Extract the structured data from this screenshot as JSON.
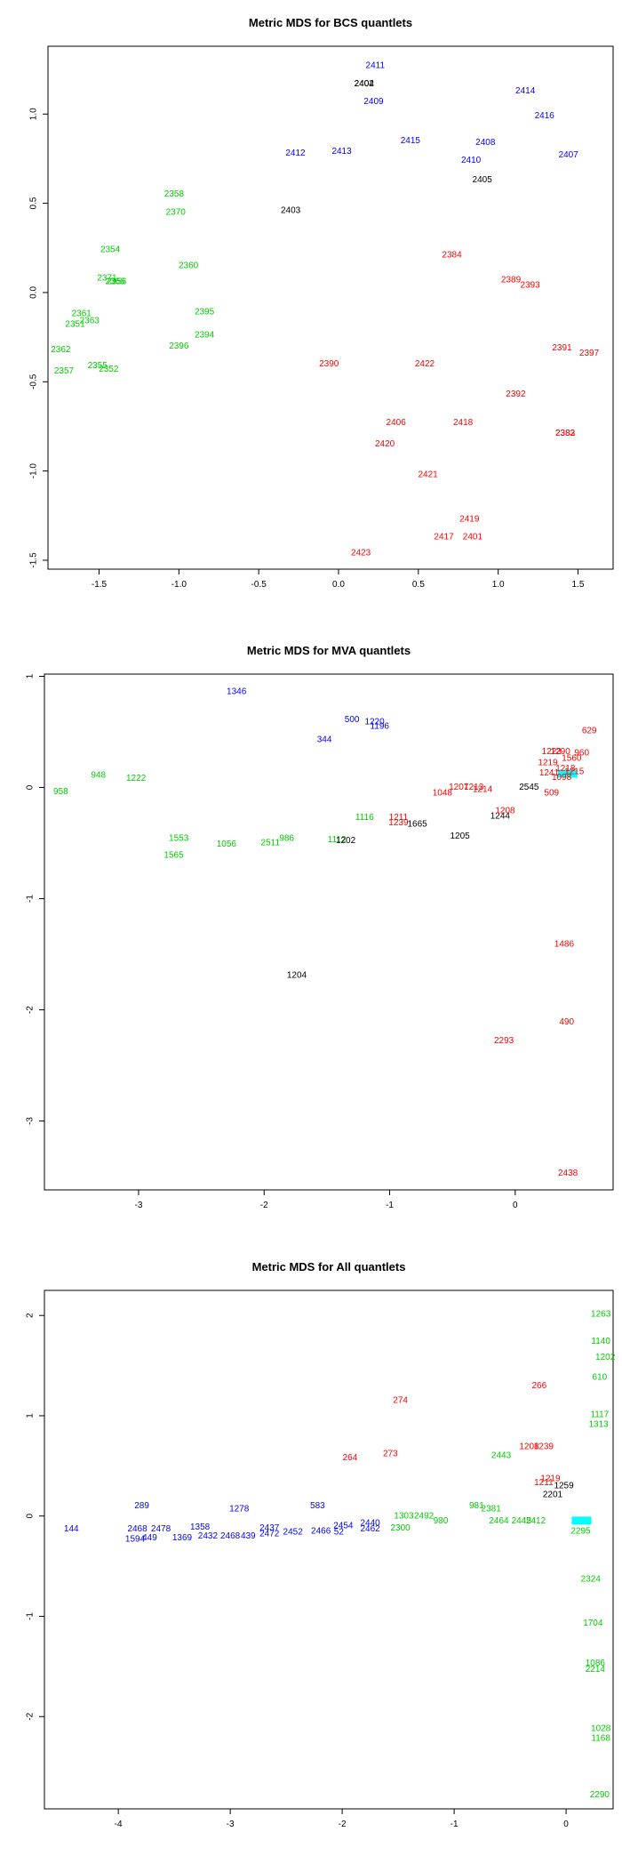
{
  "colors": {
    "black": "#000000",
    "blue": "#0000ff",
    "red": "#ff0000",
    "green": "#00cc00",
    "cyan": "#00ffff"
  },
  "chart_data": [
    {
      "type": "scatter",
      "title": "Metric MDS for BCS quantlets",
      "xlabel": "",
      "ylabel": "",
      "xlim": [
        -1.82,
        1.72
      ],
      "ylim": [
        -1.55,
        1.38
      ],
      "xticks": [
        "-1.5",
        "-1.0",
        "-0.5",
        "0.0",
        "0.5",
        "1.0",
        "1.5"
      ],
      "xtick_values": [
        -1.5,
        -1.0,
        -0.5,
        0.0,
        0.5,
        1.0,
        1.5
      ],
      "yticks": [
        "-1.5",
        "-1.0",
        "-0.5",
        "0.0",
        "0.5",
        "1.0"
      ],
      "ytick_values": [
        -1.5,
        -1.0,
        -0.5,
        0.0,
        0.5,
        1.0
      ],
      "points": [
        {
          "label": "2411",
          "x": 0.23,
          "y": 1.27,
          "color": "blue"
        },
        {
          "label": "2402",
          "x": 0.16,
          "y": 1.17,
          "color": "black"
        },
        {
          "label": "2404",
          "x": 0.16,
          "y": 1.17,
          "color": "black"
        },
        {
          "label": "2409",
          "x": 0.22,
          "y": 1.07,
          "color": "blue"
        },
        {
          "label": "2414",
          "x": 1.17,
          "y": 1.13,
          "color": "blue"
        },
        {
          "label": "2416",
          "x": 1.29,
          "y": 0.99,
          "color": "blue"
        },
        {
          "label": "2412",
          "x": -0.27,
          "y": 0.78,
          "color": "blue"
        },
        {
          "label": "2413",
          "x": 0.02,
          "y": 0.79,
          "color": "blue"
        },
        {
          "label": "2415",
          "x": 0.45,
          "y": 0.85,
          "color": "blue"
        },
        {
          "label": "2408",
          "x": 0.92,
          "y": 0.84,
          "color": "blue"
        },
        {
          "label": "2410",
          "x": 0.83,
          "y": 0.74,
          "color": "blue"
        },
        {
          "label": "2407",
          "x": 1.44,
          "y": 0.77,
          "color": "blue"
        },
        {
          "label": "2405",
          "x": 0.9,
          "y": 0.63,
          "color": "black"
        },
        {
          "label": "2403",
          "x": -0.3,
          "y": 0.46,
          "color": "black"
        },
        {
          "label": "2358",
          "x": -1.03,
          "y": 0.55,
          "color": "green"
        },
        {
          "label": "2370",
          "x": -1.02,
          "y": 0.45,
          "color": "green"
        },
        {
          "label": "2354",
          "x": -1.43,
          "y": 0.24,
          "color": "green"
        },
        {
          "label": "2360",
          "x": -0.94,
          "y": 0.15,
          "color": "green"
        },
        {
          "label": "2371",
          "x": -1.45,
          "y": 0.08,
          "color": "green"
        },
        {
          "label": "2366",
          "x": -1.4,
          "y": 0.06,
          "color": "green"
        },
        {
          "label": "2356",
          "x": -1.39,
          "y": 0.06,
          "color": "green"
        },
        {
          "label": "2361",
          "x": -1.61,
          "y": -0.12,
          "color": "green"
        },
        {
          "label": "2363",
          "x": -1.56,
          "y": -0.16,
          "color": "green"
        },
        {
          "label": "2351",
          "x": -1.65,
          "y": -0.18,
          "color": "green"
        },
        {
          "label": "2395",
          "x": -0.84,
          "y": -0.11,
          "color": "green"
        },
        {
          "label": "2394",
          "x": -0.84,
          "y": -0.24,
          "color": "green"
        },
        {
          "label": "2396",
          "x": -1.0,
          "y": -0.3,
          "color": "green"
        },
        {
          "label": "2362",
          "x": -1.74,
          "y": -0.32,
          "color": "green"
        },
        {
          "label": "2355",
          "x": -1.51,
          "y": -0.41,
          "color": "green"
        },
        {
          "label": "2352",
          "x": -1.44,
          "y": -0.43,
          "color": "green"
        },
        {
          "label": "2357",
          "x": -1.72,
          "y": -0.44,
          "color": "green"
        },
        {
          "label": "2384",
          "x": 0.71,
          "y": 0.21,
          "color": "red"
        },
        {
          "label": "2389",
          "x": 1.08,
          "y": 0.07,
          "color": "red"
        },
        {
          "label": "2393",
          "x": 1.2,
          "y": 0.04,
          "color": "red"
        },
        {
          "label": "2391",
          "x": 1.4,
          "y": -0.31,
          "color": "red"
        },
        {
          "label": "2397",
          "x": 1.57,
          "y": -0.34,
          "color": "red"
        },
        {
          "label": "2390",
          "x": -0.06,
          "y": -0.4,
          "color": "red"
        },
        {
          "label": "2422",
          "x": 0.54,
          "y": -0.4,
          "color": "red"
        },
        {
          "label": "2392",
          "x": 1.11,
          "y": -0.57,
          "color": "red"
        },
        {
          "label": "2406",
          "x": 0.36,
          "y": -0.73,
          "color": "red"
        },
        {
          "label": "2418",
          "x": 0.78,
          "y": -0.73,
          "color": "red"
        },
        {
          "label": "2383",
          "x": 1.42,
          "y": -0.79,
          "color": "red"
        },
        {
          "label": "2382",
          "x": 1.42,
          "y": -0.79,
          "color": "red"
        },
        {
          "label": "2420",
          "x": 0.29,
          "y": -0.85,
          "color": "red"
        },
        {
          "label": "2421",
          "x": 0.56,
          "y": -1.02,
          "color": "red"
        },
        {
          "label": "2419",
          "x": 0.82,
          "y": -1.27,
          "color": "red"
        },
        {
          "label": "2417",
          "x": 0.66,
          "y": -1.37,
          "color": "red"
        },
        {
          "label": "2401",
          "x": 0.84,
          "y": -1.37,
          "color": "red"
        },
        {
          "label": "2423",
          "x": 0.14,
          "y": -1.46,
          "color": "red"
        }
      ]
    },
    {
      "type": "scatter",
      "title": "Metric MDS for MVA quantlets",
      "xlabel": "",
      "ylabel": "",
      "xlim": [
        -3.75,
        0.78
      ],
      "ylim": [
        -3.62,
        1.02
      ],
      "xticks": [
        "-3",
        "-2",
        "-1",
        "0"
      ],
      "xtick_values": [
        -3,
        -2,
        -1,
        0
      ],
      "yticks": [
        "-3",
        "-2",
        "-1",
        "0",
        "1"
      ],
      "ytick_values": [
        -3,
        -2,
        -1,
        0,
        1
      ],
      "points": [
        {
          "label": "1346",
          "x": -2.22,
          "y": 0.86,
          "color": "blue"
        },
        {
          "label": "500",
          "x": -1.3,
          "y": 0.61,
          "color": "blue"
        },
        {
          "label": "1220",
          "x": -1.12,
          "y": 0.59,
          "color": "blue"
        },
        {
          "label": "1196",
          "x": -1.08,
          "y": 0.55,
          "color": "blue"
        },
        {
          "label": "344",
          "x": -1.52,
          "y": 0.43,
          "color": "blue"
        },
        {
          "label": "948",
          "x": -3.32,
          "y": 0.11,
          "color": "green"
        },
        {
          "label": "1222",
          "x": -3.02,
          "y": 0.08,
          "color": "green"
        },
        {
          "label": "958",
          "x": -3.62,
          "y": -0.04,
          "color": "green"
        },
        {
          "label": "1116",
          "x": -1.2,
          "y": -0.27,
          "color": "green"
        },
        {
          "label": "1553",
          "x": -2.68,
          "y": -0.46,
          "color": "green"
        },
        {
          "label": "1056",
          "x": -2.3,
          "y": -0.51,
          "color": "green"
        },
        {
          "label": "2511",
          "x": -1.95,
          "y": -0.5,
          "color": "green"
        },
        {
          "label": "986",
          "x": -1.82,
          "y": -0.46,
          "color": "green"
        },
        {
          "label": "1112",
          "x": -1.42,
          "y": -0.47,
          "color": "green"
        },
        {
          "label": "1565",
          "x": -2.72,
          "y": -0.61,
          "color": "green"
        },
        {
          "label": "1202",
          "x": -1.35,
          "y": -0.48,
          "color": "black"
        },
        {
          "label": "1665",
          "x": -0.78,
          "y": -0.33,
          "color": "black"
        },
        {
          "label": "1205",
          "x": -0.44,
          "y": -0.44,
          "color": "black"
        },
        {
          "label": "1204",
          "x": -1.74,
          "y": -1.69,
          "color": "black"
        },
        {
          "label": "2545",
          "x": 0.11,
          "y": 0.0,
          "color": "black"
        },
        {
          "label": "1244",
          "x": -0.12,
          "y": -0.26,
          "color": "black"
        },
        {
          "label": "1226",
          "x": 0.41,
          "y": 0.12,
          "color": "cyan"
        },
        {
          "label": "629",
          "x": 0.59,
          "y": 0.51,
          "color": "red"
        },
        {
          "label": "1223",
          "x": 0.29,
          "y": 0.32,
          "color": "red"
        },
        {
          "label": "1290",
          "x": 0.36,
          "y": 0.32,
          "color": "red"
        },
        {
          "label": "1219",
          "x": 0.26,
          "y": 0.22,
          "color": "red"
        },
        {
          "label": "1560",
          "x": 0.45,
          "y": 0.26,
          "color": "red"
        },
        {
          "label": "960",
          "x": 0.53,
          "y": 0.31,
          "color": "red"
        },
        {
          "label": "1241",
          "x": 0.27,
          "y": 0.13,
          "color": "red"
        },
        {
          "label": "1218",
          "x": 0.4,
          "y": 0.17,
          "color": "red"
        },
        {
          "label": "1215",
          "x": 0.47,
          "y": 0.14,
          "color": "red"
        },
        {
          "label": "1098",
          "x": 0.37,
          "y": 0.09,
          "color": "red"
        },
        {
          "label": "509",
          "x": 0.29,
          "y": -0.05,
          "color": "red"
        },
        {
          "label": "1048",
          "x": -0.58,
          "y": -0.05,
          "color": "red"
        },
        {
          "label": "1207",
          "x": -0.45,
          "y": 0.0,
          "color": "red"
        },
        {
          "label": "1214",
          "x": -0.26,
          "y": -0.02,
          "color": "red"
        },
        {
          "label": "1213",
          "x": -0.33,
          "y": 0.0,
          "color": "red"
        },
        {
          "label": "1208",
          "x": -0.08,
          "y": -0.21,
          "color": "red"
        },
        {
          "label": "1211",
          "x": -0.93,
          "y": -0.27,
          "color": "red"
        },
        {
          "label": "1239",
          "x": -0.93,
          "y": -0.32,
          "color": "red"
        },
        {
          "label": "1486",
          "x": 0.39,
          "y": -1.41,
          "color": "red"
        },
        {
          "label": "490",
          "x": 0.41,
          "y": -2.11,
          "color": "red"
        },
        {
          "label": "2293",
          "x": -0.09,
          "y": -2.28,
          "color": "red"
        },
        {
          "label": "2438",
          "x": 0.42,
          "y": -3.47,
          "color": "red"
        }
      ]
    },
    {
      "type": "scatter",
      "title": "Metric MDS for All quantlets",
      "xlabel": "",
      "ylabel": "",
      "xlim": [
        -4.66,
        0.42
      ],
      "ylim": [
        -2.92,
        2.25
      ],
      "xticks": [
        "-4",
        "-3",
        "-2",
        "-1",
        "0"
      ],
      "xtick_values": [
        -4,
        -3,
        -2,
        -1,
        0
      ],
      "yticks": [
        "-2",
        "-1",
        "0",
        "1",
        "2"
      ],
      "ytick_values": [
        -2,
        -1,
        0,
        1,
        2
      ],
      "points": [
        {
          "label": "289",
          "x": -3.79,
          "y": 0.1,
          "color": "blue"
        },
        {
          "label": "144",
          "x": -4.42,
          "y": -0.13,
          "color": "blue"
        },
        {
          "label": "2468",
          "x": -3.83,
          "y": -0.13,
          "color": "blue"
        },
        {
          "label": "2478",
          "x": -3.62,
          "y": -0.13,
          "color": "blue"
        },
        {
          "label": "1594",
          "x": -3.85,
          "y": -0.23,
          "color": "blue"
        },
        {
          "label": "449",
          "x": -3.72,
          "y": -0.22,
          "color": "blue"
        },
        {
          "label": "1358",
          "x": -3.27,
          "y": -0.11,
          "color": "blue"
        },
        {
          "label": "1369",
          "x": -3.43,
          "y": -0.22,
          "color": "blue"
        },
        {
          "label": "2432",
          "x": -3.2,
          "y": -0.2,
          "color": "blue"
        },
        {
          "label": "2468",
          "x": -3.0,
          "y": -0.2,
          "color": "blue"
        },
        {
          "label": "439",
          "x": -2.84,
          "y": -0.2,
          "color": "blue"
        },
        {
          "label": "1278",
          "x": -2.92,
          "y": 0.07,
          "color": "blue"
        },
        {
          "label": "2437",
          "x": -2.65,
          "y": -0.12,
          "color": "blue"
        },
        {
          "label": "2472",
          "x": -2.65,
          "y": -0.18,
          "color": "blue"
        },
        {
          "label": "2452",
          "x": -2.44,
          "y": -0.16,
          "color": "blue"
        },
        {
          "label": "2466",
          "x": -2.19,
          "y": -0.15,
          "color": "blue"
        },
        {
          "label": "52",
          "x": -2.03,
          "y": -0.16,
          "color": "blue"
        },
        {
          "label": "2454",
          "x": -1.99,
          "y": -0.1,
          "color": "blue"
        },
        {
          "label": "583",
          "x": -2.22,
          "y": 0.1,
          "color": "blue"
        },
        {
          "label": "2440",
          "x": -1.75,
          "y": -0.07,
          "color": "blue"
        },
        {
          "label": "2462",
          "x": -1.75,
          "y": -0.13,
          "color": "blue"
        },
        {
          "label": "274",
          "x": -1.48,
          "y": 1.15,
          "color": "red"
        },
        {
          "label": "264",
          "x": -1.93,
          "y": 0.58,
          "color": "red"
        },
        {
          "label": "273",
          "x": -1.57,
          "y": 0.62,
          "color": "red"
        },
        {
          "label": "266",
          "x": -0.24,
          "y": 1.3,
          "color": "red"
        },
        {
          "label": "1208",
          "x": -0.33,
          "y": 0.69,
          "color": "red"
        },
        {
          "label": "1239",
          "x": -0.2,
          "y": 0.69,
          "color": "red"
        },
        {
          "label": "1211",
          "x": -0.2,
          "y": 0.33,
          "color": "red"
        },
        {
          "label": "1219",
          "x": -0.14,
          "y": 0.37,
          "color": "red"
        },
        {
          "label": "2443",
          "x": -0.58,
          "y": 0.6,
          "color": "green"
        },
        {
          "label": "2300",
          "x": -1.48,
          "y": -0.12,
          "color": "green"
        },
        {
          "label": "1303",
          "x": -1.45,
          "y": 0.0,
          "color": "green"
        },
        {
          "label": "2492",
          "x": -1.27,
          "y": 0.0,
          "color": "green"
        },
        {
          "label": "980",
          "x": -1.12,
          "y": -0.05,
          "color": "green"
        },
        {
          "label": "981",
          "x": -0.8,
          "y": 0.1,
          "color": "green"
        },
        {
          "label": "2381",
          "x": -0.67,
          "y": 0.07,
          "color": "green"
        },
        {
          "label": "2464",
          "x": -0.6,
          "y": -0.05,
          "color": "green"
        },
        {
          "label": "2445",
          "x": -0.4,
          "y": -0.05,
          "color": "green"
        },
        {
          "label": "2412",
          "x": -0.27,
          "y": -0.05,
          "color": "green"
        },
        {
          "label": "1117",
          "x": 0.3,
          "y": 1.01,
          "color": "green"
        },
        {
          "label": "1263",
          "x": 0.31,
          "y": 2.01,
          "color": "green"
        },
        {
          "label": "1140",
          "x": 0.31,
          "y": 1.74,
          "color": "green"
        },
        {
          "label": "1202",
          "x": 0.35,
          "y": 1.58,
          "color": "green"
        },
        {
          "label": "610",
          "x": 0.3,
          "y": 1.38,
          "color": "green"
        },
        {
          "label": "1313",
          "x": 0.29,
          "y": 0.91,
          "color": "green"
        },
        {
          "label": "2324",
          "x": 0.22,
          "y": -0.63,
          "color": "green"
        },
        {
          "label": "1704",
          "x": 0.24,
          "y": -1.07,
          "color": "green"
        },
        {
          "label": "1086",
          "x": 0.26,
          "y": -1.47,
          "color": "green"
        },
        {
          "label": "2214",
          "x": 0.26,
          "y": -1.53,
          "color": "green"
        },
        {
          "label": "1028",
          "x": 0.31,
          "y": -2.12,
          "color": "green"
        },
        {
          "label": "1168",
          "x": 0.31,
          "y": -2.22,
          "color": "green"
        },
        {
          "label": "2290",
          "x": 0.3,
          "y": -2.78,
          "color": "green"
        },
        {
          "label": "1259",
          "x": -0.02,
          "y": 0.3,
          "color": "black"
        },
        {
          "label": "2201",
          "x": -0.12,
          "y": 0.21,
          "color": "black"
        },
        {
          "label": "2295",
          "x": 0.13,
          "y": -0.15,
          "color": "green"
        },
        {
          "label": "1226",
          "x": 0.13,
          "y": -0.05,
          "color": "cyan"
        }
      ]
    }
  ]
}
